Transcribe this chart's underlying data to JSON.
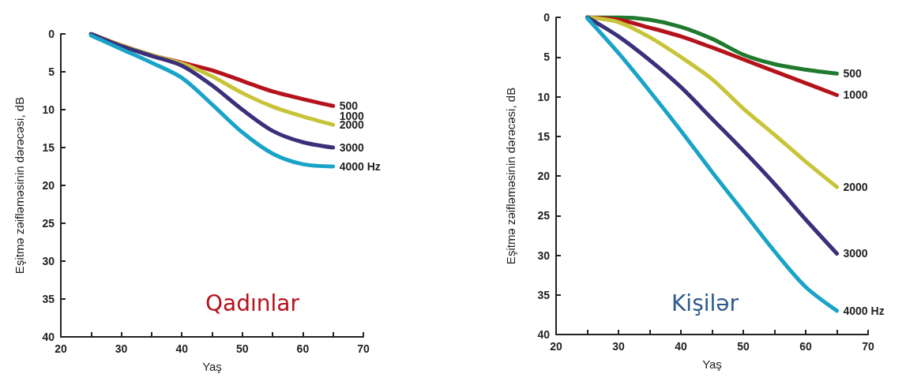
{
  "chart_data": [
    {
      "type": "line",
      "title": "Qadınlar",
      "annotations": [
        {
          "text": "1000",
          "x": 65,
          "y": 9.5
        }
      ],
      "xlabel": "Yaş",
      "ylabel": "Eşitmə zəifləməsinin dərəcəsi, dB",
      "x": [
        25,
        30,
        35,
        40,
        45,
        50,
        55,
        60,
        65
      ],
      "series": [
        {
          "name": "500",
          "color": "#b5121b",
          "values": [
            0,
            1.5,
            2.8,
            3.8,
            4.8,
            6.2,
            7.6,
            8.6,
            9.5
          ]
        },
        {
          "name": "2000",
          "color": "#c8c43a",
          "values": [
            0,
            1.5,
            2.8,
            3.9,
            5.6,
            7.8,
            9.6,
            10.9,
            12
          ]
        },
        {
          "name": "3000",
          "color": "#3a2f7a",
          "values": [
            0,
            1.6,
            2.9,
            4.2,
            6.8,
            10,
            12.8,
            14.3,
            15
          ]
        },
        {
          "name": "4000 Hz",
          "color": "#1aa3c8",
          "values": [
            0.2,
            2,
            3.8,
            5.8,
            9.3,
            13,
            15.8,
            17.2,
            17.5
          ]
        }
      ],
      "xlim": [
        20,
        70
      ],
      "xticks": [
        20,
        {
          "value": 25,
          "label": null
        },
        30,
        {
          "value": 35,
          "label": null
        },
        40,
        {
          "value": 45,
          "label": null
        },
        50,
        {
          "value": 55,
          "label": null
        },
        60,
        {
          "value": 65,
          "label": null
        },
        70
      ],
      "ylim": [
        40,
        0
      ],
      "yticks": [
        0,
        5,
        10,
        15,
        20,
        25,
        30,
        35,
        40
      ],
      "grid": false,
      "legend": false,
      "marker": "none",
      "line_style": "solid"
    },
    {
      "type": "line",
      "title": "Kişilər",
      "xlabel": "Yaş",
      "ylabel": "Eşitmə zəifləməsinin dərəcəsi, dB",
      "x": [
        25,
        30,
        35,
        40,
        45,
        50,
        55,
        60,
        65
      ],
      "series": [
        {
          "name": "500",
          "color": "#1f7a2e",
          "values": [
            0,
            0,
            0.3,
            1.2,
            2.7,
            4.7,
            5.9,
            6.6,
            7.1
          ]
        },
        {
          "name": "1000",
          "color": "#b5121b",
          "values": [
            0,
            0.3,
            1.3,
            2.4,
            3.8,
            5.3,
            6.8,
            8.3,
            9.8
          ]
        },
        {
          "name": "2000",
          "color": "#c8c43a",
          "values": [
            0,
            0.6,
            2.5,
            5,
            7.8,
            11.5,
            14.8,
            18.2,
            21.4
          ]
        },
        {
          "name": "3000",
          "color": "#3a2f7a",
          "values": [
            0,
            2.4,
            5.4,
            8.8,
            12.8,
            16.8,
            21,
            25.5,
            29.8
          ]
        },
        {
          "name": "4000 Hz",
          "color": "#1aa3c8",
          "values": [
            0.1,
            4.5,
            9.3,
            14.3,
            19.5,
            24.5,
            29.5,
            34,
            37
          ]
        }
      ],
      "xlim": [
        20,
        70
      ],
      "xticks": [
        20,
        {
          "value": 25,
          "label": null
        },
        30,
        {
          "value": 35,
          "label": null
        },
        40,
        {
          "value": 45,
          "label": null
        },
        50,
        {
          "value": 55,
          "label": null
        },
        60,
        {
          "value": 65,
          "label": null
        },
        70
      ],
      "ylim": [
        40,
        0
      ],
      "yticks": [
        0,
        5,
        10,
        15,
        20,
        25,
        30,
        35,
        40
      ],
      "grid": false,
      "legend": false,
      "marker": "none",
      "line_style": "solid"
    }
  ]
}
